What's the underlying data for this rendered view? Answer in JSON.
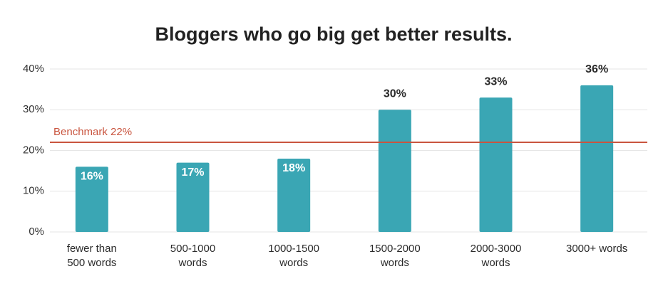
{
  "chart_data": {
    "type": "bar",
    "title": "Bloggers who go big get better results.",
    "categories": [
      "fewer than\n500 words",
      "500-1000\nwords",
      "1000-1500\nwords",
      "1500-2000\nwords",
      "2000-3000\nwords",
      "3000+ words"
    ],
    "values": [
      16,
      17,
      18,
      30,
      33,
      36
    ],
    "value_labels": [
      "16%",
      "17%",
      "18%",
      "30%",
      "33%",
      "36%"
    ],
    "color": "#3aa6b4",
    "ylim": [
      0,
      40
    ],
    "yticks": [
      {
        "value": 0,
        "label": "0%"
      },
      {
        "value": 10,
        "label": "10%"
      },
      {
        "value": 20,
        "label": "20%"
      },
      {
        "value": 30,
        "label": "30%"
      },
      {
        "value": 40,
        "label": "40%"
      }
    ],
    "grid": true,
    "reference_line": {
      "value": 22,
      "label": "Benchmark 22%",
      "color": "#c9553f"
    }
  }
}
